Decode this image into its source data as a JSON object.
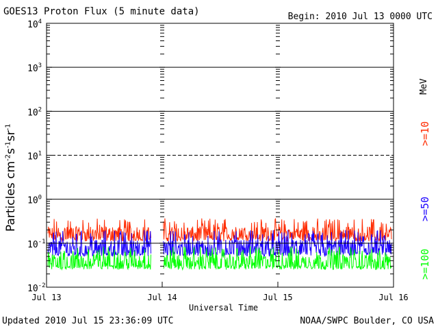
{
  "header": {
    "title": "GOES13 Proton Flux (5 minute data)",
    "begin": "Begin: 2010 Jul 13 0000 UTC"
  },
  "footer": {
    "updated": "Updated 2010 Jul 15 23:36:09 UTC",
    "source": "NOAA/SWPC Boulder, CO USA"
  },
  "side_labels": {
    "unit": "MeV"
  },
  "colors": {
    "ge10": "#ff2a00",
    "ge50": "#1a00ff",
    "ge100": "#00ff00",
    "axis": "#000000"
  },
  "chart_data": {
    "type": "line",
    "title": "GOES13 Proton Flux (5 minute data)",
    "xlabel": "Universal Time",
    "ylabel": "Particles cm-2s-1sr-1",
    "yscale": "log",
    "ylim": [
      0.01,
      10000
    ],
    "yticks": [
      {
        "value": 0.01,
        "base": "10",
        "exp": "-2"
      },
      {
        "value": 0.1,
        "base": "10",
        "exp": "-1"
      },
      {
        "value": 1,
        "base": "10",
        "exp": "0"
      },
      {
        "value": 10,
        "base": "10",
        "exp": "1"
      },
      {
        "value": 100,
        "base": "10",
        "exp": "2"
      },
      {
        "value": 1000,
        "base": "10",
        "exp": "3"
      },
      {
        "value": 10000,
        "base": "10",
        "exp": "4"
      }
    ],
    "xlim": [
      "2010-07-13 00:00",
      "2010-07-16 00:00"
    ],
    "xticks": [
      {
        "time": "2010-07-13 00:00",
        "label": "Jul 13"
      },
      {
        "time": "2010-07-14 00:00",
        "label": "Jul 14"
      },
      {
        "time": "2010-07-15 00:00",
        "label": "Jul 15"
      },
      {
        "time": "2010-07-16 00:00",
        "label": "Jul 16"
      }
    ],
    "reference_lines": [
      {
        "value": 10,
        "style": "dashed"
      },
      {
        "value": 0.1,
        "style": "solid"
      },
      {
        "value": 1,
        "style": "solid"
      },
      {
        "value": 100,
        "style": "solid"
      },
      {
        "value": 1000,
        "style": "solid"
      }
    ],
    "data_gap": [
      "2010-07-13 21:40",
      "2010-07-14 00:15"
    ],
    "data_end": "2010-07-15 23:35",
    "series": [
      {
        "name": ">=10",
        "color": "#ff2a00",
        "typical": 0.17,
        "min": 0.11,
        "max": 0.37
      },
      {
        "name": ">=50",
        "color": "#1a00ff",
        "typical": 0.085,
        "min": 0.05,
        "max": 0.2
      },
      {
        "name": ">=100",
        "color": "#00ff00",
        "typical": 0.04,
        "min": 0.025,
        "max": 0.085
      }
    ],
    "grid": true,
    "legend_position": "right"
  }
}
